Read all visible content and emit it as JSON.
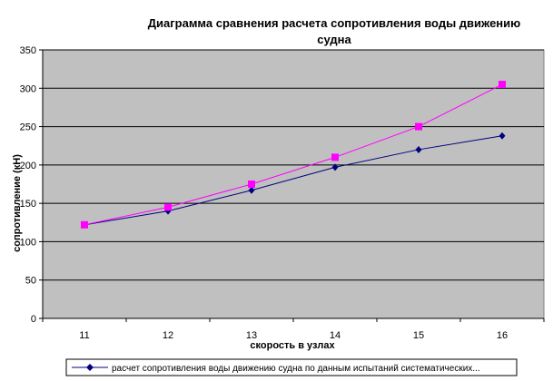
{
  "chart_data": {
    "type": "line",
    "title_lines": [
      "Диаграмма сравнения расчета сопротивления воды движению",
      "судна"
    ],
    "xlabel": "скорость в узлах",
    "ylabel": "сопротивление (кН)",
    "x": [
      11,
      12,
      13,
      14,
      15,
      16
    ],
    "x_tick_labels": [
      "11",
      "12",
      "13",
      "14",
      "15",
      "16"
    ],
    "ylim": [
      0,
      350
    ],
    "y_ticks": [
      0,
      50,
      100,
      150,
      200,
      250,
      300,
      350
    ],
    "y_tick_labels": [
      "0",
      "50",
      "100",
      "150",
      "200",
      "250",
      "300",
      "350"
    ],
    "grid": true,
    "plot_background": "#c0c0c0",
    "legend_position": "bottom",
    "series": [
      {
        "name": "расчет сопротивления воды движению судна по данным испытаний систематических...",
        "values": [
          122,
          140,
          167,
          197,
          220,
          238
        ],
        "color": "#000080",
        "marker": "diamond",
        "show_in_legend": true
      },
      {
        "values": [
          122,
          145,
          175,
          210,
          250,
          305
        ],
        "color": "#ff00ff",
        "marker": "square",
        "show_in_legend": false
      }
    ]
  }
}
